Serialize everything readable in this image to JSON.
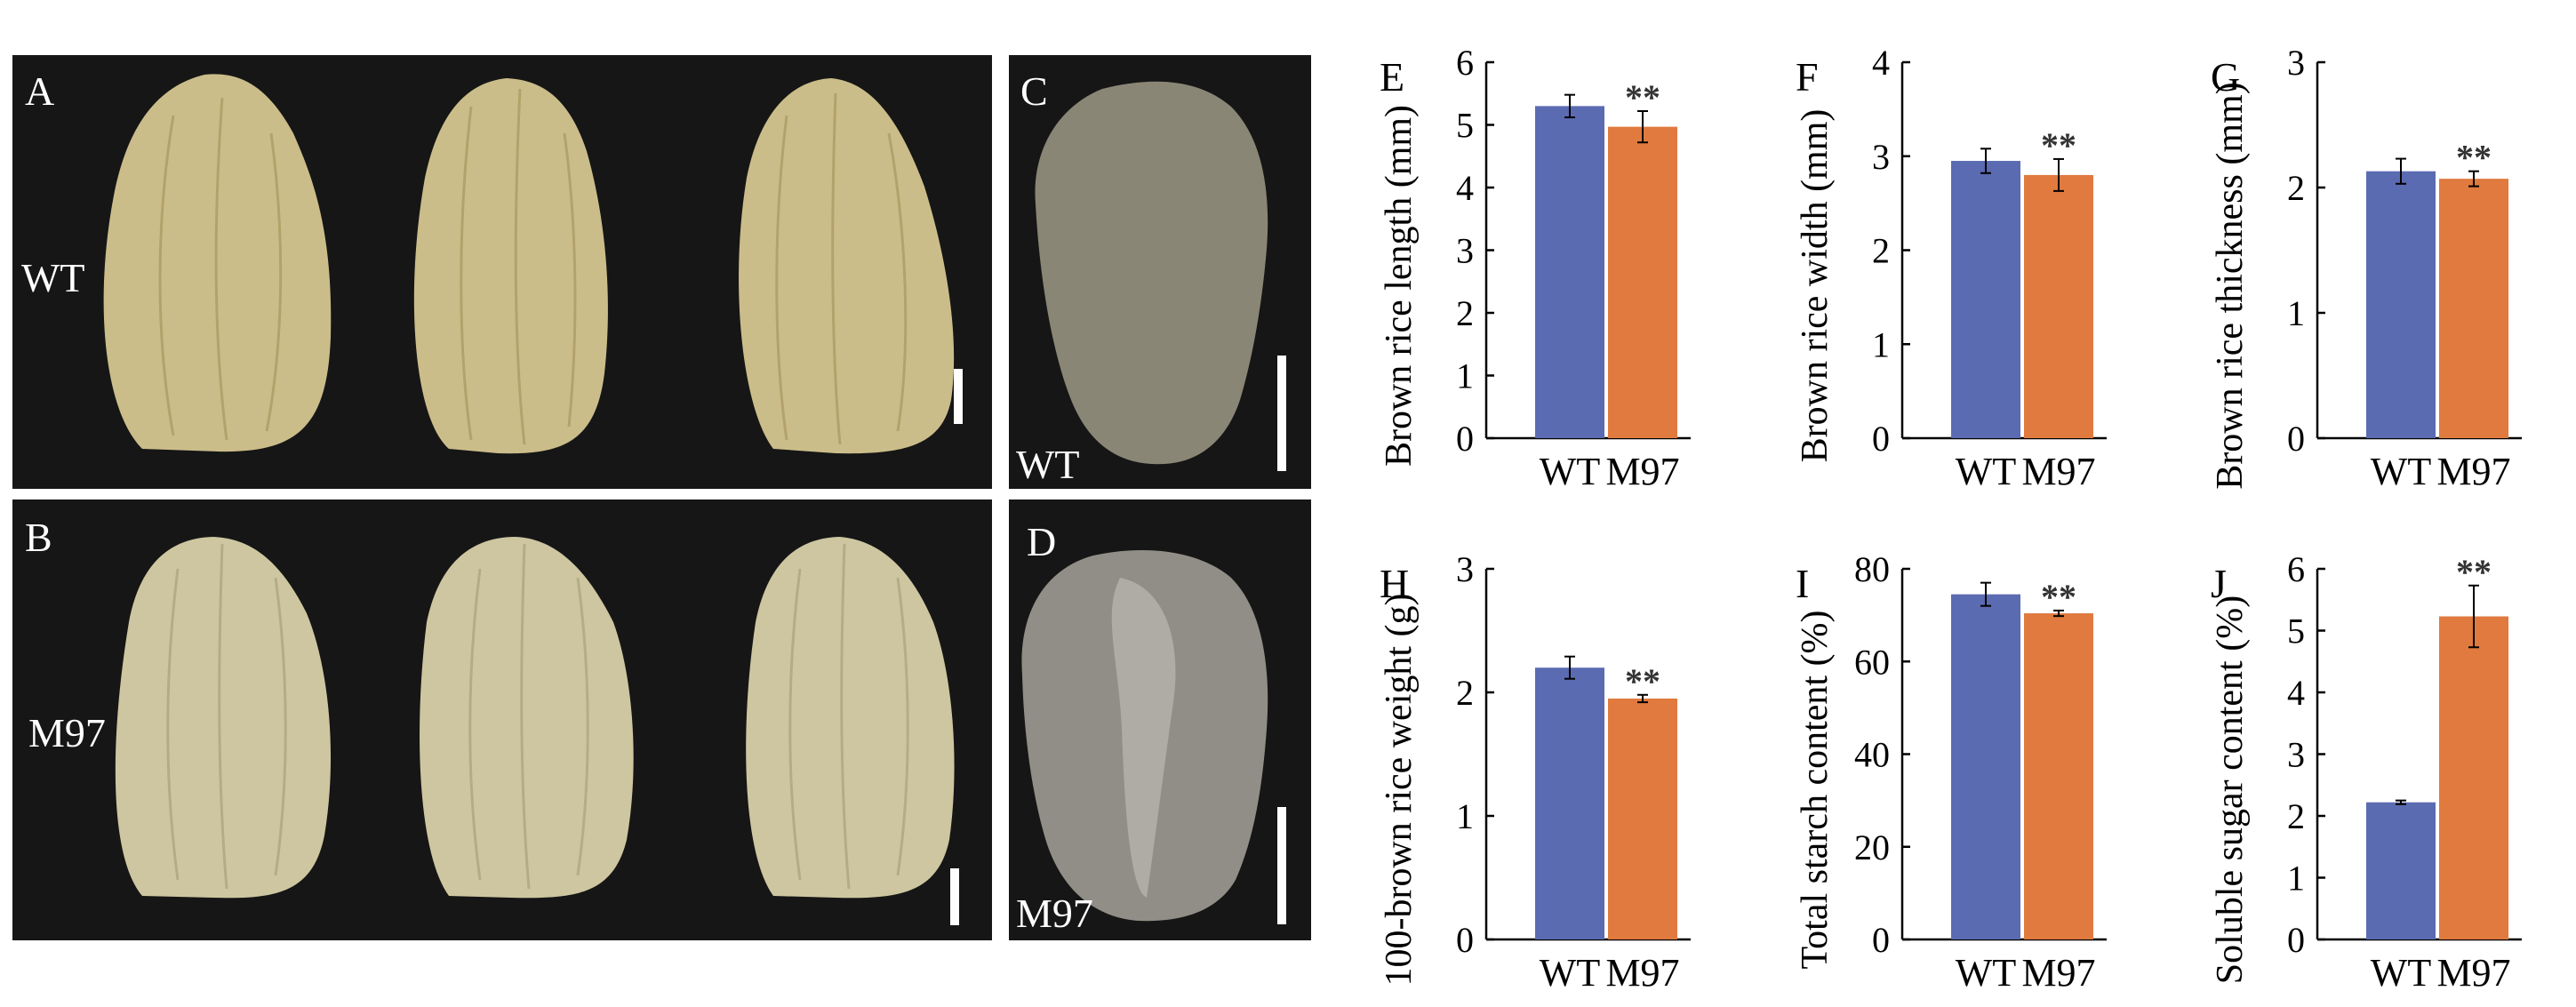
{
  "photo_panels": [
    {
      "letter": "A",
      "label": "WT"
    },
    {
      "letter": "B",
      "label": "M97"
    },
    {
      "letter": "C",
      "label": "WT"
    },
    {
      "letter": "D",
      "label": "M97"
    }
  ],
  "colors": {
    "wt": "#5b6bb2",
    "m97": "#e07a3e",
    "photo_bg": "#161616",
    "grain_A": "#cbbd8a",
    "grain_B": "#cdc6a0",
    "section_C": "#898676",
    "section_D": "#908e86"
  },
  "chart_data": [
    {
      "panel": "E",
      "type": "bar",
      "categories": [
        "WT",
        "M97"
      ],
      "values": [
        5.3,
        4.97
      ],
      "errors": [
        0.18,
        0.25
      ],
      "significance": [
        "",
        "**"
      ],
      "ylabel": "Brown rice length (mm)",
      "ylim": [
        0,
        6
      ],
      "yticks": [
        0,
        1,
        2,
        3,
        4,
        5,
        6
      ],
      "tick_labels": [
        "0",
        "1",
        "2",
        "3",
        "4",
        "5",
        "6"
      ]
    },
    {
      "panel": "F",
      "type": "bar",
      "categories": [
        "WT",
        "M97"
      ],
      "values": [
        2.95,
        2.8
      ],
      "errors": [
        0.13,
        0.17
      ],
      "significance": [
        "",
        "**"
      ],
      "ylabel": "Brown rice width (mm)",
      "ylim": [
        0,
        4
      ],
      "yticks": [
        0,
        1,
        2,
        3,
        4
      ],
      "tick_labels": [
        "0",
        "1",
        "2",
        "3",
        "4"
      ]
    },
    {
      "panel": "G",
      "type": "bar",
      "categories": [
        "WT",
        "M97"
      ],
      "values": [
        2.13,
        2.07
      ],
      "errors": [
        0.1,
        0.06
      ],
      "significance": [
        "",
        "**"
      ],
      "ylabel": "Brown rice thickness (mm)",
      "ylim": [
        0,
        3
      ],
      "yticks": [
        0,
        1,
        2,
        3
      ],
      "tick_labels": [
        "0",
        "1",
        "2",
        "3"
      ]
    },
    {
      "panel": "H",
      "type": "bar",
      "categories": [
        "WT",
        "M97"
      ],
      "values": [
        2.2,
        1.95
      ],
      "errors": [
        0.09,
        0.03
      ],
      "significance": [
        "",
        "**"
      ],
      "ylabel": "100-brown rice weight (g)",
      "ylim": [
        0,
        3
      ],
      "yticks": [
        0,
        1,
        2,
        3
      ],
      "tick_labels": [
        "0",
        "1",
        "2",
        "3"
      ]
    },
    {
      "panel": "I",
      "type": "bar",
      "categories": [
        "WT",
        "M97"
      ],
      "values": [
        74.5,
        70.4
      ],
      "errors": [
        2.5,
        0.6
      ],
      "significance": [
        "",
        "**"
      ],
      "ylabel": "Total starch content (%)",
      "ylim": [
        0,
        80
      ],
      "yticks": [
        0,
        20,
        40,
        60,
        80
      ],
      "tick_labels": [
        "0",
        "20",
        "40",
        "60",
        "80"
      ]
    },
    {
      "panel": "J",
      "type": "bar",
      "categories": [
        "WT",
        "M97"
      ],
      "values": [
        2.22,
        5.23
      ],
      "errors": [
        0.03,
        0.5
      ],
      "significance": [
        "",
        "**"
      ],
      "ylabel": "Soluble sugar content (%)",
      "ylim": [
        0,
        6
      ],
      "yticks": [
        0,
        1,
        2,
        3,
        4,
        5,
        6
      ],
      "tick_labels": [
        "0",
        "1",
        "2",
        "3",
        "4",
        "5",
        "6"
      ]
    }
  ]
}
